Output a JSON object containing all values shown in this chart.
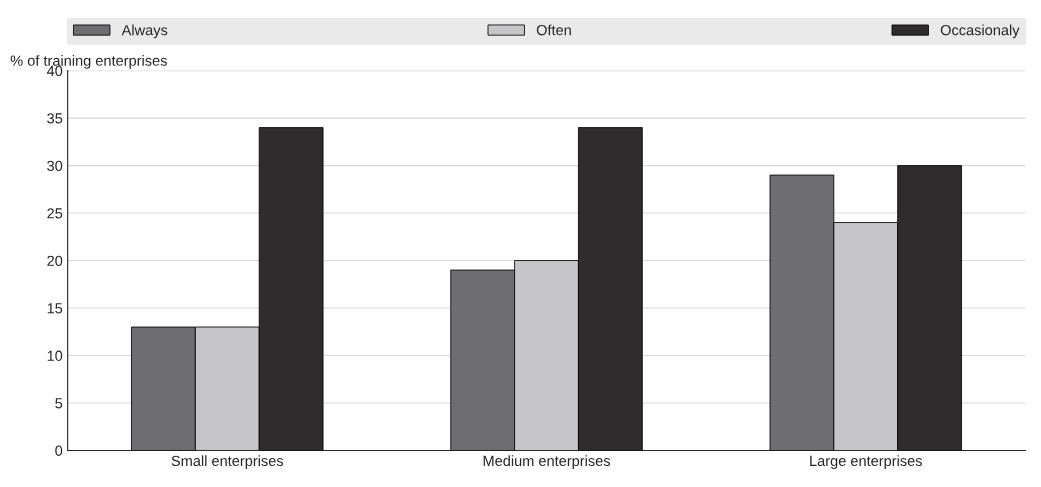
{
  "chart_data": {
    "type": "bar",
    "ylabel": "% of training enterprises",
    "categories": [
      "Small enterprises",
      "Medium enterprises",
      "Large enterprises"
    ],
    "series": [
      {
        "name": "Always",
        "color": "#6e6e70",
        "values": [
          13,
          19,
          29
        ]
      },
      {
        "name": "Often",
        "color": "#c6c6c8",
        "values": [
          13,
          20,
          24
        ]
      },
      {
        "name": "Occasionaly",
        "color": "#2e2c2d",
        "values": [
          34,
          34,
          30
        ]
      }
    ],
    "ylim": [
      0,
      40
    ],
    "yticks": [
      0,
      5,
      10,
      15,
      20,
      25,
      30,
      35,
      40
    ],
    "grid": "y",
    "legend": "top"
  }
}
